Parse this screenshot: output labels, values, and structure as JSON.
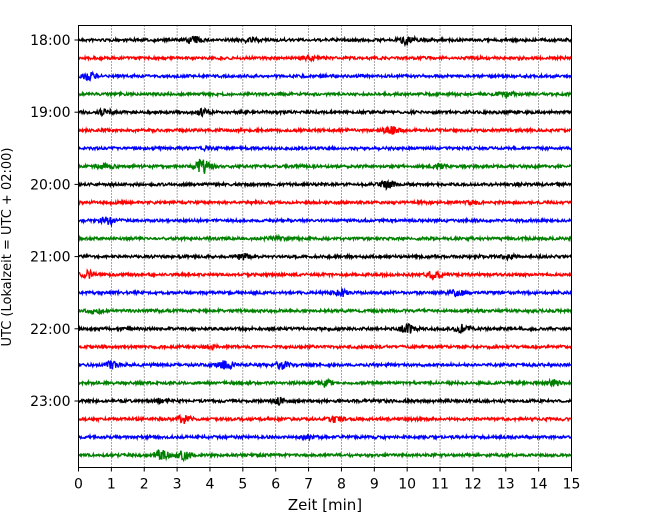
{
  "chart_data": {
    "type": "line",
    "xlabel": "Zeit  [min]",
    "ylabel": "UTC (Lokalzeit = UTC + 02:00)",
    "xlim": [
      0,
      15
    ],
    "x_ticks": [
      "0",
      "1",
      "2",
      "3",
      "4",
      "5",
      "6",
      "7",
      "8",
      "9",
      "10",
      "11",
      "12",
      "13",
      "14",
      "15"
    ],
    "y_ticks": [
      "18:00",
      "19:00",
      "20:00",
      "21:00",
      "22:00",
      "23:00"
    ],
    "grid": "vertical dotted",
    "colors": [
      "#000000",
      "#ff0000",
      "#0000ff",
      "#008000"
    ],
    "series": [
      {
        "values": [
          {
            "x": 3.5,
            "a": 3
          },
          {
            "x": 5.2,
            "a": 2
          },
          {
            "x": 10.0,
            "a": 4
          }
        ]
      },
      {
        "values": [
          {
            "x": 7.0,
            "a": 1.5
          }
        ]
      },
      {
        "values": [
          {
            "x": 0.3,
            "a": 3
          }
        ]
      },
      {
        "values": [
          {
            "x": 13.0,
            "a": 3
          }
        ]
      },
      {
        "values": [
          {
            "x": 0.8,
            "a": 3
          },
          {
            "x": 3.8,
            "a": 2.5
          }
        ]
      },
      {
        "values": [
          {
            "x": 9.5,
            "a": 3.5
          }
        ]
      },
      {
        "values": [
          {
            "x": 4.0,
            "a": 1.5
          }
        ]
      },
      {
        "values": [
          {
            "x": 0.8,
            "a": 3
          },
          {
            "x": 3.8,
            "a": 7
          },
          {
            "x": 11.0,
            "a": 2
          }
        ]
      },
      {
        "values": [
          {
            "x": 9.4,
            "a": 3.5
          }
        ]
      },
      {
        "values": [
          {
            "x": 12.0,
            "a": 1.5
          }
        ]
      },
      {
        "values": [
          {
            "x": 0.9,
            "a": 4
          }
        ]
      },
      {
        "values": [
          {
            "x": 6.0,
            "a": 1.5
          }
        ]
      },
      {
        "values": [
          {
            "x": 5.0,
            "a": 2.5
          },
          {
            "x": 13.0,
            "a": 2
          }
        ]
      },
      {
        "values": [
          {
            "x": 0.3,
            "a": 3
          },
          {
            "x": 10.8,
            "a": 3
          }
        ]
      },
      {
        "values": [
          {
            "x": 8.0,
            "a": 3
          },
          {
            "x": 11.5,
            "a": 2.5
          }
        ]
      },
      {
        "values": [
          {
            "x": 0.5,
            "a": 2.5
          }
        ]
      },
      {
        "values": [
          {
            "x": 10.0,
            "a": 4
          },
          {
            "x": 11.7,
            "a": 4
          }
        ]
      },
      {
        "values": [
          {
            "x": 4.0,
            "a": 1.5
          }
        ]
      },
      {
        "values": [
          {
            "x": 1.0,
            "a": 3.5
          },
          {
            "x": 4.5,
            "a": 4
          },
          {
            "x": 6.2,
            "a": 3.5
          }
        ]
      },
      {
        "values": [
          {
            "x": 7.5,
            "a": 3.5
          },
          {
            "x": 14.5,
            "a": 2.5
          }
        ]
      },
      {
        "values": [
          {
            "x": 2.5,
            "a": 2
          },
          {
            "x": 6.1,
            "a": 3
          }
        ]
      },
      {
        "values": [
          {
            "x": 3.2,
            "a": 3.5
          },
          {
            "x": 7.8,
            "a": 3
          }
        ]
      },
      {
        "values": [
          {
            "x": 7.0,
            "a": 1.5
          }
        ]
      },
      {
        "values": [
          {
            "x": 2.5,
            "a": 5
          },
          {
            "x": 3.2,
            "a": 5
          }
        ]
      }
    ]
  }
}
